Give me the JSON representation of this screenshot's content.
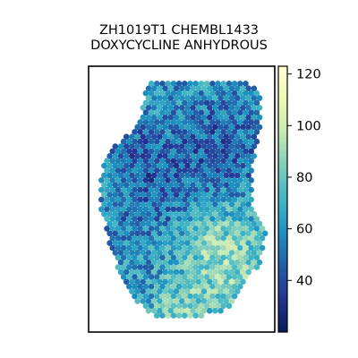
{
  "chart_data": {
    "type": "scatter",
    "subtype": "spatial hexagonal spot plot (tissue section) with continuous colorbar",
    "title": [
      "ZH1019T1 CHEMBL1433",
      "DOXYCYCLINE ANHYDROUS"
    ],
    "xlabel": "",
    "ylabel": "",
    "axis_ticks_visible": false,
    "grid": false,
    "colormap": "YlGnBu_r",
    "colorbar": {
      "position": "right",
      "range": [
        20,
        123
      ],
      "ticks": [
        40,
        60,
        80,
        100,
        120
      ]
    },
    "spot_value_range": [
      20,
      123
    ],
    "regions": [
      {
        "name": "upper-left dark cluster",
        "approx_value": 35
      },
      {
        "name": "upper-right dark cluster",
        "approx_value": 38
      },
      {
        "name": "lower-right bright cluster",
        "approx_value": 100
      },
      {
        "name": "bottom rim",
        "approx_value": 95
      },
      {
        "name": "left rim",
        "approx_value": 85
      },
      {
        "name": "body average",
        "approx_value": 60
      }
    ]
  },
  "colors": {
    "cmap_stops": [
      "#081d58",
      "#253494",
      "#225ea8",
      "#1d91c0",
      "#41b6c4",
      "#7fcdbb",
      "#c7e9b4",
      "#edf8b1",
      "#ffffd9"
    ],
    "frame": "#000000"
  }
}
